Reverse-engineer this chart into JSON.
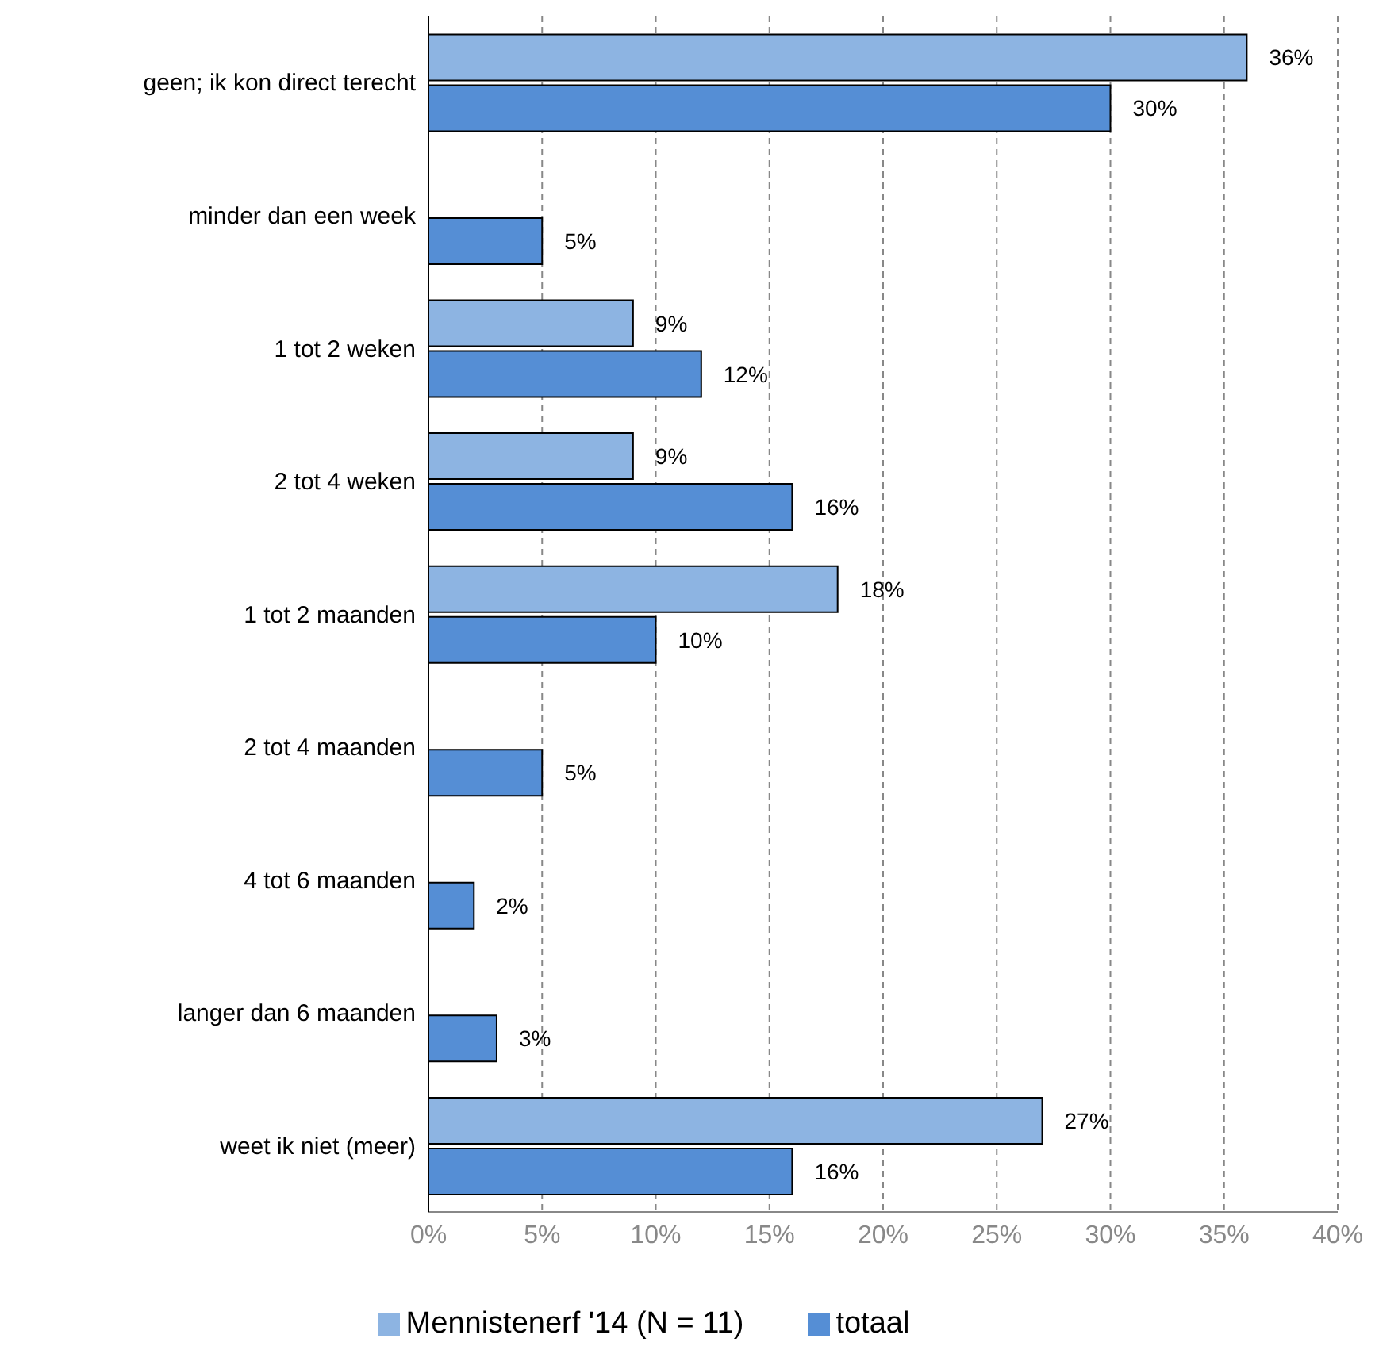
{
  "chart_data": {
    "type": "bar",
    "orientation": "horizontal",
    "categories": [
      "geen; ik kon direct terecht",
      "minder dan een week",
      "1 tot 2 weken",
      "2 tot 4 weken",
      "1 tot 2 maanden",
      "2 tot 4 maanden",
      "4 tot 6 maanden",
      "langer dan 6 maanden",
      "weet ik niet (meer)"
    ],
    "series": [
      {
        "name": "Mennistenerf '14 (N = 11)",
        "color": "#8db4e2",
        "values": [
          36,
          null,
          9,
          9,
          18,
          null,
          null,
          null,
          27
        ],
        "value_labels": [
          "36%",
          null,
          "9%",
          "9%",
          "18%",
          null,
          null,
          null,
          "27%"
        ]
      },
      {
        "name": "totaal",
        "color": "#558ed5",
        "values": [
          30,
          5,
          12,
          16,
          10,
          5,
          2,
          3,
          16
        ],
        "value_labels": [
          "30%",
          "5%",
          "12%",
          "16%",
          "10%",
          "5%",
          "2%",
          "3%",
          "16%"
        ]
      }
    ],
    "xlim": [
      0,
      40
    ],
    "xticks": [
      {
        "value": 0,
        "label": "0%"
      },
      {
        "value": 5,
        "label": "5%"
      },
      {
        "value": 10,
        "label": "10%"
      },
      {
        "value": 15,
        "label": "15%"
      },
      {
        "value": 20,
        "label": "20%"
      },
      {
        "value": 25,
        "label": "25%"
      },
      {
        "value": 30,
        "label": "30%"
      },
      {
        "value": 35,
        "label": "35%"
      },
      {
        "value": 40,
        "label": "40%"
      }
    ],
    "grid": "x",
    "legend": "bottom"
  }
}
